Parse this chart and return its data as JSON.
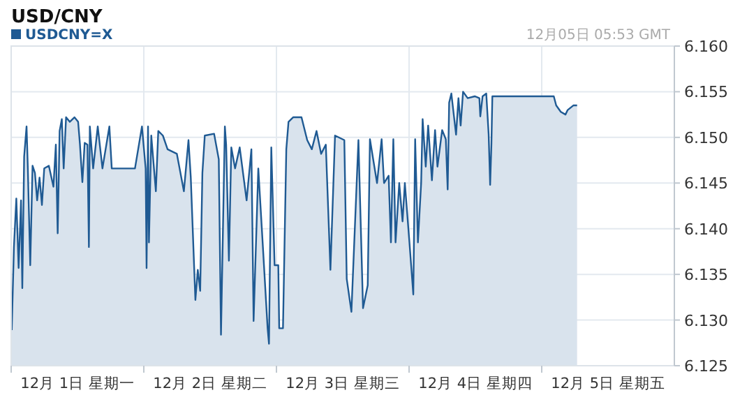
{
  "chart_data": {
    "type": "area",
    "title": "USD/CNY",
    "annotations": [
      "12月05日 05:53 GMT"
    ],
    "legend": "top left",
    "grid": true,
    "xlim": [
      "--12-01",
      "--12-06"
    ],
    "xticks": [
      {
        "value": "--12-01",
        "label": null
      },
      {
        "value": "--12-01T12:00",
        "label": "12月 1日 星期一"
      },
      {
        "value": "--12-02",
        "label": null
      },
      {
        "value": "--12-02T12:00",
        "label": "12月 2日 星期二"
      },
      {
        "value": "--12-03",
        "label": null
      },
      {
        "value": "--12-03T12:00",
        "label": "12月 3日 星期三"
      },
      {
        "value": "--12-04",
        "label": null
      },
      {
        "value": "--12-04T12:00",
        "label": "12月 4日 星期四"
      },
      {
        "value": "--12-05",
        "label": null
      },
      {
        "value": "--12-05T12:00",
        "label": "12月 5日 星期五"
      }
    ],
    "ylim": [
      6.125,
      6.16
    ],
    "yticks": [
      6.125,
      {
        "value": 6.13,
        "label": "6.130"
      },
      6.135,
      {
        "value": 6.14,
        "label": "6.140"
      },
      6.145,
      {
        "value": 6.15,
        "label": "6.150"
      },
      6.155,
      {
        "value": 6.16,
        "label": "6.160"
      }
    ],
    "series": [
      {
        "name": "USDCNY=X",
        "color": "#1f5a93",
        "x": [
          "--12-01T00:06",
          "--12-01T00:30",
          "--12-01T00:56",
          "--12-01T01:21",
          "--12-01T01:47",
          "--12-01T02:01",
          "--12-01T02:21",
          "--12-01T02:47",
          "--12-01T03:01",
          "--12-01T03:27",
          "--12-01T03:52",
          "--12-01T04:18",
          "--12-01T04:42",
          "--12-01T05:08",
          "--12-01T05:34",
          "--12-01T05:59",
          "--12-01T06:49",
          "--12-01T07:39",
          "--12-01T08:05",
          "--12-01T08:25",
          "--12-01T08:46",
          "--12-01T09:10",
          "--12-01T09:30",
          "--12-01T09:56",
          "--12-01T10:36",
          "--12-01T11:27",
          "--12-01T12:07",
          "--12-01T12:27",
          "--12-01T12:53",
          "--12-01T13:18",
          "--12-01T13:48",
          "--12-01T14:04",
          "--12-01T14:14",
          "--12-01T14:50",
          "--12-01T15:40",
          "--12-01T16:31",
          "--12-01T17:46",
          "--12-01T18:12",
          "--12-01T20:18",
          "--12-01T22:24",
          "--12-01T23:40",
          "--12-02T00:20",
          "--12-02T00:30",
          "--12-02T00:46",
          "--12-02T00:56",
          "--12-02T01:21",
          "--12-02T02:11",
          "--12-02T02:37",
          "--12-02T03:27",
          "--12-02T04:18",
          "--12-02T05:59",
          "--12-02T07:15",
          "--12-02T08:05",
          "--12-02T08:30",
          "--12-02T09:20",
          "--12-02T09:46",
          "--12-02T10:12",
          "--12-02T10:36",
          "--12-02T11:02",
          "--12-02T12:43",
          "--12-02T13:34",
          "--12-02T13:58",
          "--12-02T14:40",
          "--12-02T14:54",
          "--12-02T15:24",
          "--12-02T15:50",
          "--12-02T16:31",
          "--12-02T17:21",
          "--12-02T18:36",
          "--12-02T19:28",
          "--12-02T19:52",
          "--12-02T20:43",
          "--12-02T21:33",
          "--12-02T22:24",
          "--12-02T22:39",
          "--12-02T23:04",
          "--12-02T23:40",
          "--12-03T00:20",
          "--12-03T00:30",
          "--12-03T01:11",
          "--12-03T01:47",
          "--12-03T02:11",
          "--12-03T03:01",
          "--12-03T04:32",
          "--12-03T05:34",
          "--12-03T06:24",
          "--12-03T07:15",
          "--12-03T08:05",
          "--12-03T08:56",
          "--12-03T09:46",
          "--12-03T10:36",
          "--12-03T12:17",
          "--12-03T12:43",
          "--12-03T13:34",
          "--12-03T14:50",
          "--12-03T15:40",
          "--12-03T16:31",
          "--12-03T16:55",
          "--12-03T18:12",
          "--12-03T19:02",
          "--12-03T19:28",
          "--12-03T20:18",
          "--12-03T20:43",
          "--12-03T21:09",
          "--12-03T21:33",
          "--12-03T22:13",
          "--12-03T22:49",
          "--12-03T23:14",
          "--12-04T00:04",
          "--12-04T00:46",
          "--12-04T01:06",
          "--12-04T01:36",
          "--12-04T02:11",
          "--12-04T02:27",
          "--12-04T03:01",
          "--12-04T03:27",
          "--12-04T04:08",
          "--12-04T04:42",
          "--12-04T05:08",
          "--12-04T05:59",
          "--12-04T06:39",
          "--12-04T06:59",
          "--12-04T07:15",
          "--12-04T07:39",
          "--12-04T08:30",
          "--12-04T08:56",
          "--12-04T09:20",
          "--12-04T09:46",
          "--12-04T10:36",
          "--12-04T11:53",
          "--12-04T12:43",
          "--12-04T12:53",
          "--12-04T13:18",
          "--12-04T13:58",
          "--12-04T14:24",
          "--12-04T14:40",
          "--12-04T14:54",
          "--12-04T15:04",
          "--12-05T02:11",
          "--12-05T02:37",
          "--12-05T03:27",
          "--12-05T04:18",
          "--12-05T04:42",
          "--12-05T05:43",
          "--12-05T06:24"
        ],
        "values": [
          6.1289,
          6.138,
          6.1433,
          6.1357,
          6.1431,
          6.1335,
          6.1479,
          6.1512,
          6.1466,
          6.136,
          6.1469,
          6.1461,
          6.1431,
          6.1456,
          6.1426,
          6.1466,
          6.1469,
          6.1446,
          6.1492,
          6.1395,
          6.1507,
          6.152,
          6.1466,
          6.1522,
          6.1517,
          6.1522,
          6.1517,
          6.1492,
          6.1451,
          6.1494,
          6.1492,
          6.138,
          6.1512,
          6.1466,
          6.1512,
          6.1466,
          6.1512,
          6.1466,
          6.1466,
          6.1466,
          6.1512,
          6.1466,
          6.1357,
          6.1512,
          6.1385,
          6.1502,
          6.1441,
          6.1507,
          6.1502,
          6.1487,
          6.1482,
          6.1441,
          6.1497,
          6.1456,
          6.1322,
          6.1355,
          6.1332,
          6.1461,
          6.1502,
          6.1504,
          6.1476,
          6.1284,
          6.1512,
          6.1492,
          6.1365,
          6.1489,
          6.1466,
          6.1489,
          6.1431,
          6.1487,
          6.1299,
          6.1466,
          6.138,
          6.1291,
          6.1274,
          6.1489,
          6.136,
          6.136,
          6.1291,
          6.1291,
          6.1487,
          6.1517,
          6.1522,
          6.1522,
          6.1497,
          6.1487,
          6.1507,
          6.1482,
          6.1492,
          6.1355,
          6.1502,
          6.1497,
          6.1345,
          6.1309,
          6.1497,
          6.1313,
          6.1338,
          6.1498,
          6.145,
          6.1498,
          6.145,
          6.1458,
          6.1385,
          6.1498,
          6.1385,
          6.145,
          6.1408,
          6.145,
          6.1385,
          6.1328,
          6.1498,
          6.1385,
          6.145,
          6.152,
          6.1468,
          6.1513,
          6.1453,
          6.1508,
          6.1468,
          6.1508,
          6.1498,
          6.1443,
          6.1538,
          6.1548,
          6.1503,
          6.1543,
          6.1513,
          6.155,
          6.1543,
          6.1545,
          6.1543,
          6.1523,
          6.1545,
          6.1548,
          6.1503,
          6.1448,
          6.1493,
          6.1545,
          6.1545,
          6.1535,
          6.1528,
          6.1525,
          6.153,
          6.1535,
          6.1535
        ]
      }
    ]
  }
}
